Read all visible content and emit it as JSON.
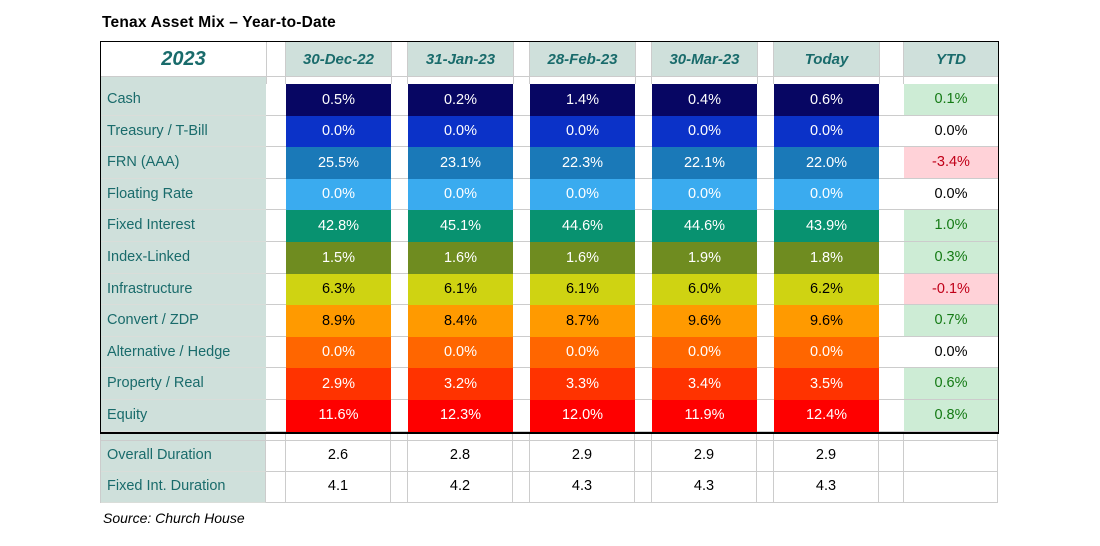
{
  "title": "Tenax Asset Mix – Year-to-Date",
  "source": "Source: Church House",
  "colors": {
    "header_bg": "#cfe0db",
    "teal_text": "#196b6b",
    "ytd_positive_bg": "#cdecd5",
    "ytd_positive_text": "#147a14",
    "ytd_negative_bg": "#ffd2d8",
    "ytd_negative_text": "#c00018",
    "ytd_neutral_bg": "#ffffff",
    "ytd_neutral_text": "#000000",
    "gridline": "#cccccc"
  },
  "table": {
    "year_label": "2023",
    "columns": [
      "30-Dec-22",
      "31-Jan-23",
      "28-Feb-23",
      "30-Mar-23",
      "Today"
    ],
    "ytd_label": "YTD",
    "rows": [
      {
        "label": "Cash",
        "bg": "#070663",
        "fg": "#ffffff",
        "values": [
          "0.5%",
          "0.2%",
          "1.4%",
          "0.4%",
          "0.6%"
        ],
        "ytd": "0.1%",
        "ytd_state": "positive"
      },
      {
        "label": "Treasury / T-Bill",
        "bg": "#0b32c8",
        "fg": "#ffffff",
        "values": [
          "0.0%",
          "0.0%",
          "0.0%",
          "0.0%",
          "0.0%"
        ],
        "ytd": "0.0%",
        "ytd_state": "neutral"
      },
      {
        "label": "FRN (AAA)",
        "bg": "#1a79b8",
        "fg": "#ffffff",
        "values": [
          "25.5%",
          "23.1%",
          "22.3%",
          "22.1%",
          "22.0%"
        ],
        "ytd": "-3.4%",
        "ytd_state": "negative"
      },
      {
        "label": "Floating Rate",
        "bg": "#3aabef",
        "fg": "#ffffff",
        "values": [
          "0.0%",
          "0.0%",
          "0.0%",
          "0.0%",
          "0.0%"
        ],
        "ytd": "0.0%",
        "ytd_state": "neutral"
      },
      {
        "label": "Fixed Interest",
        "bg": "#089270",
        "fg": "#ffffff",
        "values": [
          "42.8%",
          "45.1%",
          "44.6%",
          "44.6%",
          "43.9%"
        ],
        "ytd": "1.0%",
        "ytd_state": "positive"
      },
      {
        "label": "Index-Linked",
        "bg": "#6f8c20",
        "fg": "#ffffff",
        "values": [
          "1.5%",
          "1.6%",
          "1.6%",
          "1.9%",
          "1.8%"
        ],
        "ytd": "0.3%",
        "ytd_state": "positive"
      },
      {
        "label": "Infrastructure",
        "bg": "#cfd312",
        "fg": "#000000",
        "values": [
          "6.3%",
          "6.1%",
          "6.1%",
          "6.0%",
          "6.2%"
        ],
        "ytd": "-0.1%",
        "ytd_state": "negative"
      },
      {
        "label": "Convert / ZDP",
        "bg": "#ff9a00",
        "fg": "#000000",
        "values": [
          "8.9%",
          "8.4%",
          "8.7%",
          "9.6%",
          "9.6%"
        ],
        "ytd": "0.7%",
        "ytd_state": "positive"
      },
      {
        "label": "Alternative / Hedge",
        "bg": "#ff6600",
        "fg": "#ffffff",
        "values": [
          "0.0%",
          "0.0%",
          "0.0%",
          "0.0%",
          "0.0%"
        ],
        "ytd": "0.0%",
        "ytd_state": "neutral"
      },
      {
        "label": "Property / Real",
        "bg": "#ff3300",
        "fg": "#ffffff",
        "values": [
          "2.9%",
          "3.2%",
          "3.3%",
          "3.4%",
          "3.5%"
        ],
        "ytd": "0.6%",
        "ytd_state": "positive"
      },
      {
        "label": "Equity",
        "bg": "#fe0000",
        "fg": "#ffffff",
        "values": [
          "11.6%",
          "12.3%",
          "12.0%",
          "11.9%",
          "12.4%"
        ],
        "ytd": "0.8%",
        "ytd_state": "positive"
      }
    ],
    "duration_rows": [
      {
        "label": "Overall Duration",
        "values": [
          "2.6",
          "2.8",
          "2.9",
          "2.9",
          "2.9"
        ]
      },
      {
        "label": "Fixed Int. Duration",
        "values": [
          "4.1",
          "4.2",
          "4.3",
          "4.3",
          "4.3"
        ]
      }
    ]
  },
  "chart_data": {
    "type": "table",
    "title": "Tenax Asset Mix – Year-to-Date",
    "columns": [
      "2023",
      "30-Dec-22",
      "31-Jan-23",
      "28-Feb-23",
      "30-Mar-23",
      "Today",
      "YTD"
    ],
    "unit": "percent",
    "rows": [
      [
        "Cash",
        0.5,
        0.2,
        1.4,
        0.4,
        0.6,
        0.1
      ],
      [
        "Treasury / T-Bill",
        0.0,
        0.0,
        0.0,
        0.0,
        0.0,
        0.0
      ],
      [
        "FRN (AAA)",
        25.5,
        23.1,
        22.3,
        22.1,
        22.0,
        -3.4
      ],
      [
        "Floating Rate",
        0.0,
        0.0,
        0.0,
        0.0,
        0.0,
        0.0
      ],
      [
        "Fixed Interest",
        42.8,
        45.1,
        44.6,
        44.6,
        43.9,
        1.0
      ],
      [
        "Index-Linked",
        1.5,
        1.6,
        1.6,
        1.9,
        1.8,
        0.3
      ],
      [
        "Infrastructure",
        6.3,
        6.1,
        6.1,
        6.0,
        6.2,
        -0.1
      ],
      [
        "Convert / ZDP",
        8.9,
        8.4,
        8.7,
        9.6,
        9.6,
        0.7
      ],
      [
        "Alternative / Hedge",
        0.0,
        0.0,
        0.0,
        0.0,
        0.0,
        0.0
      ],
      [
        "Property / Real",
        2.9,
        3.2,
        3.3,
        3.4,
        3.5,
        0.6
      ],
      [
        "Equity",
        11.6,
        12.3,
        12.0,
        11.9,
        12.4,
        0.8
      ]
    ],
    "extra_rows": [
      [
        "Overall Duration",
        2.6,
        2.8,
        2.9,
        2.9,
        2.9,
        null
      ],
      [
        "Fixed Int. Duration",
        4.1,
        4.2,
        4.3,
        4.3,
        4.3,
        null
      ]
    ],
    "source": "Source: Church House",
    "layout_hints": {
      "color_encoding": "each asset row has its own fill color (navy→blue→teal→green→olive→yellow→orange→red top to bottom)",
      "ytd_encoding": "green bg = positive, pink bg = negative, white bg = zero"
    }
  }
}
